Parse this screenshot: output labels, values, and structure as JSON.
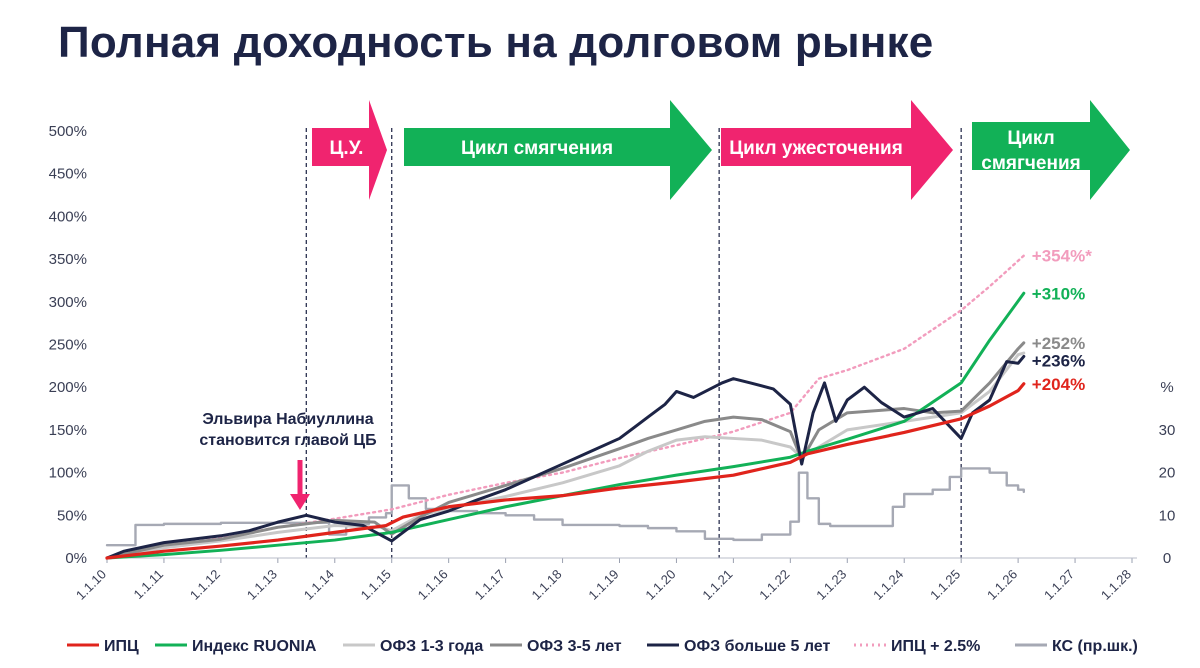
{
  "title": "Полная доходность на долговом рынке",
  "annotation": {
    "line1": "Эльвира Набиуллина",
    "line2": "становится главой ЦБ"
  },
  "phases": [
    {
      "label": "Ц.У.",
      "color": "#f0246f"
    },
    {
      "label": "Цикл смягчения",
      "color": "#12b157"
    },
    {
      "label": "Цикл ужесточения",
      "color": "#f0246f"
    },
    {
      "label": "Цикл смягчения",
      "color": "#12b157"
    }
  ],
  "chart_data": {
    "type": "line",
    "x_tick_labels": [
      "1.1.10",
      "1.1.11",
      "1.1.12",
      "1.1.13",
      "1.1.14",
      "1.1.15",
      "1.1.16",
      "1.1.17",
      "1.1.18",
      "1.1.19",
      "1.1.20",
      "1.1.21",
      "1.1.22",
      "1.1.23",
      "1.1.24",
      "1.1.25",
      "1.1.26",
      "1.1.27",
      "1.1.28"
    ],
    "xlim": [
      2010,
      2028
    ],
    "y_left": {
      "ticks": [
        "0%",
        "50%",
        "100%",
        "150%",
        "200%",
        "250%",
        "300%",
        "350%",
        "400%",
        "450%",
        "500%"
      ],
      "ylim": [
        0,
        500
      ]
    },
    "y_right": {
      "label": "%",
      "ticks": [
        "0",
        "10",
        "20",
        "30"
      ],
      "ylim": [
        0,
        50
      ]
    },
    "vlines": [
      2013.5,
      2015,
      2020.75,
      2025
    ],
    "series": [
      {
        "name": "ИПЦ",
        "color": "#e0241c",
        "style": "solid",
        "width": 3.2,
        "end_label": "+204%",
        "points": [
          [
            2010,
            0
          ],
          [
            2011,
            8
          ],
          [
            2012,
            14
          ],
          [
            2013,
            21
          ],
          [
            2014,
            30
          ],
          [
            2014.9,
            38
          ],
          [
            2015.2,
            48
          ],
          [
            2016,
            60
          ],
          [
            2017,
            68
          ],
          [
            2018,
            73
          ],
          [
            2019,
            82
          ],
          [
            2020,
            89
          ],
          [
            2021,
            97
          ],
          [
            2022,
            112
          ],
          [
            2022.3,
            122
          ],
          [
            2023,
            133
          ],
          [
            2024,
            147
          ],
          [
            2025,
            163
          ],
          [
            2025.5,
            178
          ],
          [
            2026,
            196
          ],
          [
            2026.1,
            204
          ]
        ]
      },
      {
        "name": "Индекс RUONIA",
        "color": "#12b157",
        "style": "solid",
        "width": 3,
        "end_label": "+310%",
        "points": [
          [
            2010,
            0
          ],
          [
            2011,
            4
          ],
          [
            2012,
            9
          ],
          [
            2013,
            15
          ],
          [
            2014,
            21
          ],
          [
            2015,
            30
          ],
          [
            2016,
            45
          ],
          [
            2017,
            60
          ],
          [
            2018,
            73
          ],
          [
            2019,
            86
          ],
          [
            2020,
            97
          ],
          [
            2021,
            107
          ],
          [
            2022,
            118
          ],
          [
            2022.3,
            125
          ],
          [
            2023,
            139
          ],
          [
            2024,
            160
          ],
          [
            2025,
            205
          ],
          [
            2025.5,
            255
          ],
          [
            2026.1,
            310
          ]
        ]
      },
      {
        "name": "ОФЗ 1-3 года",
        "color": "#c8c8c8",
        "style": "solid",
        "width": 3,
        "end_label": null,
        "points": [
          [
            2010,
            0
          ],
          [
            2011,
            12
          ],
          [
            2012,
            20
          ],
          [
            2013,
            30
          ],
          [
            2014,
            38
          ],
          [
            2014.8,
            36
          ],
          [
            2015,
            32
          ],
          [
            2015.5,
            50
          ],
          [
            2016,
            58
          ],
          [
            2017,
            72
          ],
          [
            2018,
            88
          ],
          [
            2019,
            108
          ],
          [
            2019.5,
            125
          ],
          [
            2020,
            138
          ],
          [
            2020.5,
            142
          ],
          [
            2021,
            140
          ],
          [
            2021.5,
            138
          ],
          [
            2022,
            130
          ],
          [
            2022.2,
            118
          ],
          [
            2022.5,
            130
          ],
          [
            2023,
            150
          ],
          [
            2024,
            160
          ],
          [
            2024.5,
            165
          ],
          [
            2025,
            170
          ],
          [
            2025.5,
            195
          ],
          [
            2026,
            238
          ],
          [
            2026.1,
            240
          ]
        ]
      },
      {
        "name": "ОФЗ 3-5 лет",
        "color": "#8a8a8a",
        "style": "solid",
        "width": 3,
        "end_label": "+252%",
        "points": [
          [
            2010,
            0
          ],
          [
            2011,
            15
          ],
          [
            2012,
            22
          ],
          [
            2013,
            36
          ],
          [
            2014,
            44
          ],
          [
            2014.7,
            42
          ],
          [
            2015,
            28
          ],
          [
            2015.5,
            48
          ],
          [
            2016,
            65
          ],
          [
            2017,
            85
          ],
          [
            2018,
            105
          ],
          [
            2019,
            128
          ],
          [
            2019.5,
            140
          ],
          [
            2020,
            150
          ],
          [
            2020.5,
            160
          ],
          [
            2021,
            165
          ],
          [
            2021.5,
            162
          ],
          [
            2022,
            148
          ],
          [
            2022.2,
            115
          ],
          [
            2022.5,
            150
          ],
          [
            2023,
            170
          ],
          [
            2024,
            175
          ],
          [
            2024.5,
            170
          ],
          [
            2025,
            172
          ],
          [
            2025.5,
            205
          ],
          [
            2026,
            245
          ],
          [
            2026.1,
            252
          ]
        ]
      },
      {
        "name": "ОФЗ больше 5 лет",
        "color": "#1d2446",
        "style": "solid",
        "width": 3,
        "end_label": "+236%",
        "points": [
          [
            2010,
            0
          ],
          [
            2010.3,
            8
          ],
          [
            2011,
            18
          ],
          [
            2012,
            26
          ],
          [
            2012.5,
            32
          ],
          [
            2013,
            42
          ],
          [
            2013.5,
            50
          ],
          [
            2014,
            42
          ],
          [
            2014.5,
            38
          ],
          [
            2015,
            20
          ],
          [
            2015.3,
            35
          ],
          [
            2015.5,
            45
          ],
          [
            2016,
            55
          ],
          [
            2016.5,
            68
          ],
          [
            2017,
            80
          ],
          [
            2017.5,
            95
          ],
          [
            2018,
            110
          ],
          [
            2018.5,
            125
          ],
          [
            2019,
            140
          ],
          [
            2019.5,
            165
          ],
          [
            2019.8,
            180
          ],
          [
            2020,
            195
          ],
          [
            2020.3,
            188
          ],
          [
            2020.8,
            205
          ],
          [
            2021,
            210
          ],
          [
            2021.3,
            205
          ],
          [
            2021.7,
            198
          ],
          [
            2022,
            180
          ],
          [
            2022.2,
            110
          ],
          [
            2022.4,
            170
          ],
          [
            2022.6,
            205
          ],
          [
            2022.8,
            160
          ],
          [
            2023,
            185
          ],
          [
            2023.3,
            200
          ],
          [
            2023.6,
            182
          ],
          [
            2024,
            165
          ],
          [
            2024.5,
            175
          ],
          [
            2025,
            140
          ],
          [
            2025.2,
            170
          ],
          [
            2025.5,
            185
          ],
          [
            2025.8,
            230
          ],
          [
            2026,
            228
          ],
          [
            2026.1,
            236
          ]
        ]
      },
      {
        "name": "ИПЦ + 2.5%",
        "color": "#f29cbd",
        "style": "dotted",
        "width": 2.4,
        "end_label": "+354%*",
        "points": [
          [
            2010,
            0
          ],
          [
            2011,
            12
          ],
          [
            2012,
            24
          ],
          [
            2013,
            36
          ],
          [
            2014,
            46
          ],
          [
            2015,
            57
          ],
          [
            2016,
            74
          ],
          [
            2017,
            88
          ],
          [
            2018,
            100
          ],
          [
            2019,
            117
          ],
          [
            2020,
            132
          ],
          [
            2021,
            148
          ],
          [
            2022,
            170
          ],
          [
            2022.5,
            210
          ],
          [
            2023,
            220
          ],
          [
            2024,
            245
          ],
          [
            2025,
            290
          ],
          [
            2025.5,
            318
          ],
          [
            2026.1,
            354
          ]
        ]
      },
      {
        "name": "КС (пр.шк.)",
        "color": "#a6a9b4",
        "style": "step",
        "width": 2.4,
        "end_label": null,
        "axis": "right",
        "points": [
          [
            2010,
            3
          ],
          [
            2010.5,
            7.75
          ],
          [
            2011,
            8
          ],
          [
            2012,
            8.25
          ],
          [
            2013,
            8.25
          ],
          [
            2013.9,
            5.5
          ],
          [
            2014.2,
            8
          ],
          [
            2014.6,
            9.5
          ],
          [
            2014.9,
            10.5
          ],
          [
            2015,
            17
          ],
          [
            2015.3,
            14
          ],
          [
            2015.6,
            11.5
          ],
          [
            2016,
            11
          ],
          [
            2016.5,
            10.5
          ],
          [
            2017,
            10
          ],
          [
            2017.5,
            9
          ],
          [
            2018,
            7.75
          ],
          [
            2019,
            7.5
          ],
          [
            2019.5,
            7
          ],
          [
            2020,
            6.25
          ],
          [
            2020.5,
            4.5
          ],
          [
            2021,
            4.25
          ],
          [
            2021.5,
            5.5
          ],
          [
            2022,
            8.5
          ],
          [
            2022.15,
            20
          ],
          [
            2022.3,
            14
          ],
          [
            2022.5,
            8
          ],
          [
            2022.7,
            7.5
          ],
          [
            2023,
            7.5
          ],
          [
            2023.5,
            7.5
          ],
          [
            2023.8,
            12
          ],
          [
            2024,
            15
          ],
          [
            2024.5,
            16
          ],
          [
            2024.8,
            19
          ],
          [
            2025,
            21
          ],
          [
            2025.5,
            20
          ],
          [
            2025.8,
            17
          ],
          [
            2026,
            16
          ],
          [
            2026.1,
            15.5
          ]
        ]
      }
    ]
  },
  "legend": [
    {
      "label": "ИПЦ",
      "color": "#e0241c",
      "style": "solid"
    },
    {
      "label": "Индекс RUONIA",
      "color": "#12b157",
      "style": "solid"
    },
    {
      "label": "ОФЗ 1-3 года",
      "color": "#c8c8c8",
      "style": "solid"
    },
    {
      "label": "ОФЗ 3-5 лет",
      "color": "#8a8a8a",
      "style": "solid"
    },
    {
      "label": "ОФЗ больше 5 лет",
      "color": "#1d2446",
      "style": "solid"
    },
    {
      "label": "ИПЦ + 2.5%",
      "color": "#f29cbd",
      "style": "dotted"
    },
    {
      "label": "КС (пр.шк.)",
      "color": "#a6a9b4",
      "style": "solid"
    }
  ]
}
